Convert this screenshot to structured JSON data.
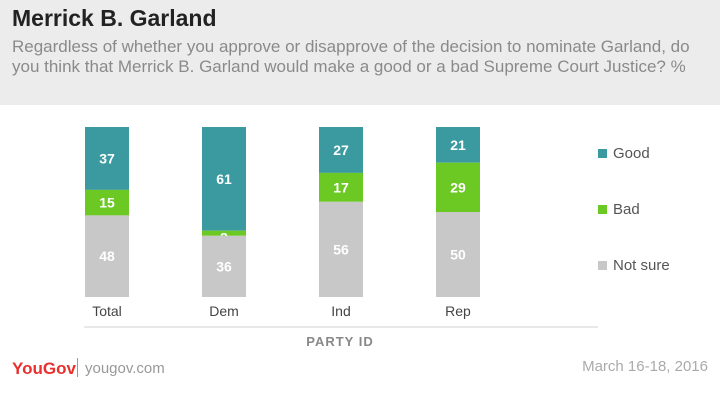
{
  "header": {
    "title": "Merrick B. Garland",
    "subtitle": "Regardless of whether you approve or disapprove of the decision to nominate Garland, do you think that Merrick B. Garland would make a good or a bad Supreme Court Justice? %"
  },
  "chart_data": {
    "type": "bar",
    "stacked": true,
    "categories": [
      "Total",
      "Dem",
      "Ind",
      "Rep"
    ],
    "series": [
      {
        "name": "Good",
        "color": "#3a9aa0",
        "values": [
          37,
          61,
          27,
          21
        ]
      },
      {
        "name": "Bad",
        "color": "#6cc924",
        "values": [
          15,
          3,
          17,
          29
        ]
      },
      {
        "name": "Not sure",
        "color": "#c8c8c8",
        "values": [
          48,
          36,
          56,
          50
        ]
      }
    ],
    "xlabel": "PARTY ID",
    "legend_position": "right",
    "grid": false
  },
  "footer": {
    "logo": "YouGov",
    "url": "yougov.com",
    "date": "March 16-18, 2016"
  }
}
